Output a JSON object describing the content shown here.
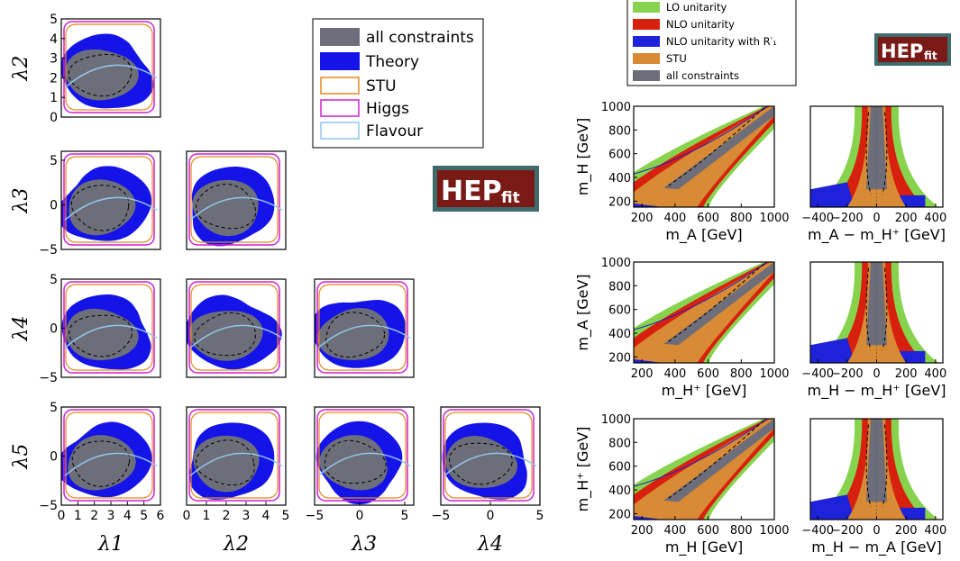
{
  "colors": {
    "all_constraints": "#6e6e7a",
    "theory": "#1414e8",
    "stu": "#e8881e",
    "higgs": "#d21ed2",
    "flavour": "#8fc6ec",
    "lo_unitarity": "#88d34e",
    "nlo_unitarity": "#d8200e",
    "nlo_unitarity_r1": "#1e22d8",
    "stu_right": "#d88a34",
    "logo_bg": "#7a1a16",
    "logo_border": "#3f6b6b"
  },
  "logo": {
    "hep": "HEP",
    "fit": "fit"
  },
  "left_legend": [
    "all constraints",
    "Theory",
    "STU",
    "Higgs",
    "Flavour"
  ],
  "right_legend": [
    "LO unitarity",
    "NLO unitarity",
    "NLO unitarity with R′₁",
    "STU",
    "all constraints"
  ],
  "chart_data": [
    {
      "type": "area",
      "panel": "triangle matrix of quartic couplings",
      "params": [
        "λ1",
        "λ2",
        "λ3",
        "λ4",
        "λ5"
      ],
      "row_labels": [
        "λ2",
        "λ3",
        "λ4",
        "λ5"
      ],
      "column_labels": [
        "λ1",
        "λ2",
        "λ3",
        "λ4"
      ],
      "x_ticks": [
        [
          "0",
          "1",
          "2",
          "3",
          "4",
          "5",
          "6"
        ],
        [
          "0",
          "1",
          "2",
          "3",
          "4",
          "5"
        ],
        [
          "−5",
          "0",
          "5"
        ],
        [
          "−5",
          "0",
          "5"
        ]
      ],
      "y_ticks": [
        [
          "0",
          "1",
          "2",
          "3",
          "4",
          "5"
        ],
        [
          "−5",
          "0",
          "5"
        ],
        [
          "−5",
          "0",
          "5"
        ],
        [
          "−5",
          "0",
          "5"
        ]
      ],
      "ranges": {
        "λ1": [
          0,
          6
        ],
        "λ2": [
          0,
          5
        ],
        "λ3": [
          -5,
          6
        ],
        "λ4": [
          -5,
          5
        ],
        "λ5": [
          -5,
          5
        ]
      },
      "legend": [
        "all constraints",
        "Theory",
        "STU",
        "Higgs",
        "Flavour"
      ],
      "legend_position": "top-right"
    },
    {
      "type": "area",
      "panel": "mass difference constraints",
      "legend": [
        "LO unitarity",
        "NLO unitarity",
        "NLO unitarity with R′₁",
        "STU",
        "all constraints"
      ],
      "legend_position": "top",
      "rows": [
        {
          "ylabel": "m_H [GeV]",
          "xlabel_left": "m_A [GeV]",
          "xlabel_right": "m_A − m_H⁺ [GeV]"
        },
        {
          "ylabel": "m_A [GeV]",
          "xlabel_left": "m_H⁺ [GeV]",
          "xlabel_right": "m_H − m_H⁺ [GeV]"
        },
        {
          "ylabel": "m_H⁺ [GeV]",
          "xlabel_left": "m_H [GeV]",
          "xlabel_right": "m_H − m_A [GeV]"
        }
      ],
      "y_ticks": [
        "200",
        "400",
        "600",
        "800",
        "1000"
      ],
      "x_ticks_left": [
        "200",
        "400",
        "600",
        "800",
        "1000"
      ],
      "x_ticks_right": [
        "−400",
        "−200",
        "0",
        "200",
        "400"
      ],
      "xlim_left": [
        150,
        1000
      ],
      "ylim": [
        150,
        1000
      ],
      "xlim_right": [
        -450,
        450
      ]
    }
  ]
}
